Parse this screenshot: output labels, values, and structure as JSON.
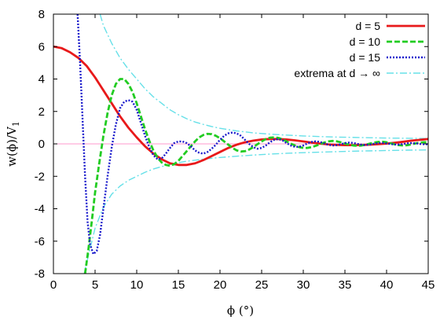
{
  "chart_data": {
    "type": "line",
    "xlabel": "ϕ (°)",
    "ylabel": "w(ϕ)/V",
    "ylabel_sub": "1",
    "xlim": [
      0,
      45
    ],
    "ylim": [
      -8,
      8
    ],
    "xticks": [
      "0",
      "5",
      "10",
      "15",
      "20",
      "25",
      "30",
      "35",
      "40",
      "45"
    ],
    "yticks": [
      "8",
      "6",
      "4",
      "2",
      "0",
      "-2",
      "-4",
      "-6",
      "-8"
    ],
    "grid": false,
    "legend_position": "top-right",
    "zero_line_color": "#ff99cc",
    "series": [
      {
        "name": "d = 5",
        "color": "#e8191a",
        "style": "solid",
        "points": [
          [
            0,
            6.0
          ],
          [
            1,
            5.9
          ],
          [
            2,
            5.65
          ],
          [
            3,
            5.3
          ],
          [
            4,
            4.8
          ],
          [
            5,
            4.1
          ],
          [
            6,
            3.3
          ],
          [
            7,
            2.5
          ],
          [
            8,
            1.7
          ],
          [
            9,
            1.0
          ],
          [
            10,
            0.4
          ],
          [
            11,
            -0.15
          ],
          [
            12,
            -0.6
          ],
          [
            13,
            -0.95
          ],
          [
            14,
            -1.2
          ],
          [
            15,
            -1.3
          ],
          [
            16,
            -1.3
          ],
          [
            17,
            -1.2
          ],
          [
            18,
            -1.0
          ],
          [
            19,
            -0.75
          ],
          [
            20,
            -0.5
          ],
          [
            21,
            -0.25
          ],
          [
            22,
            -0.05
          ],
          [
            23,
            0.1
          ],
          [
            24,
            0.2
          ],
          [
            25,
            0.27
          ],
          [
            26,
            0.3
          ],
          [
            27,
            0.3
          ],
          [
            28,
            0.27
          ],
          [
            29,
            0.22
          ],
          [
            30,
            0.15
          ],
          [
            31,
            0.08
          ],
          [
            32,
            0.02
          ],
          [
            33,
            -0.03
          ],
          [
            34,
            -0.06
          ],
          [
            35,
            -0.08
          ],
          [
            36,
            -0.08
          ],
          [
            37,
            -0.07
          ],
          [
            38,
            -0.05
          ],
          [
            39,
            -0.02
          ],
          [
            40,
            0.02
          ],
          [
            41,
            0.07
          ],
          [
            42,
            0.13
          ],
          [
            43,
            0.2
          ],
          [
            44,
            0.25
          ],
          [
            45,
            0.3
          ]
        ]
      },
      {
        "name": "d = 10",
        "color": "#22cc22",
        "style": "dashed",
        "points": [
          [
            3.8,
            -8.0
          ],
          [
            4.2,
            -6.5
          ],
          [
            4.6,
            -4.8
          ],
          [
            5.0,
            -3.0
          ],
          [
            5.5,
            -1.2
          ],
          [
            6.0,
            0.5
          ],
          [
            6.5,
            1.9
          ],
          [
            7.0,
            3.0
          ],
          [
            7.5,
            3.7
          ],
          [
            8.0,
            4.0
          ],
          [
            8.5,
            4.0
          ],
          [
            9.0,
            3.7
          ],
          [
            9.5,
            3.2
          ],
          [
            10.0,
            2.5
          ],
          [
            10.5,
            1.7
          ],
          [
            11.0,
            0.9
          ],
          [
            11.5,
            0.2
          ],
          [
            12.0,
            -0.4
          ],
          [
            12.5,
            -0.85
          ],
          [
            13.0,
            -1.15
          ],
          [
            13.5,
            -1.3
          ],
          [
            14.0,
            -1.35
          ],
          [
            14.5,
            -1.25
          ],
          [
            15.0,
            -1.05
          ],
          [
            15.5,
            -0.75
          ],
          [
            16.0,
            -0.45
          ],
          [
            16.5,
            -0.15
          ],
          [
            17.0,
            0.15
          ],
          [
            17.5,
            0.4
          ],
          [
            18.0,
            0.55
          ],
          [
            18.5,
            0.62
          ],
          [
            19.0,
            0.6
          ],
          [
            19.5,
            0.5
          ],
          [
            20.0,
            0.35
          ],
          [
            20.5,
            0.15
          ],
          [
            21.0,
            -0.05
          ],
          [
            21.5,
            -0.25
          ],
          [
            22.0,
            -0.4
          ],
          [
            22.5,
            -0.47
          ],
          [
            23.0,
            -0.45
          ],
          [
            23.5,
            -0.35
          ],
          [
            24.0,
            -0.2
          ],
          [
            24.5,
            -0.02
          ],
          [
            25.0,
            0.15
          ],
          [
            25.5,
            0.3
          ],
          [
            26.0,
            0.38
          ],
          [
            26.5,
            0.4
          ],
          [
            27.0,
            0.37
          ],
          [
            27.5,
            0.28
          ],
          [
            28.0,
            0.15
          ],
          [
            28.5,
            0.02
          ],
          [
            29.0,
            -0.1
          ],
          [
            29.5,
            -0.2
          ],
          [
            30.0,
            -0.25
          ],
          [
            30.5,
            -0.25
          ],
          [
            31.0,
            -0.2
          ],
          [
            31.5,
            -0.12
          ],
          [
            32.0,
            -0.02
          ],
          [
            32.5,
            0.08
          ],
          [
            33.0,
            0.15
          ],
          [
            33.5,
            0.18
          ],
          [
            34.0,
            0.16
          ],
          [
            34.5,
            0.1
          ],
          [
            35.0,
            0.02
          ],
          [
            35.5,
            -0.05
          ],
          [
            36.0,
            -0.1
          ],
          [
            36.5,
            -0.12
          ],
          [
            37.0,
            -0.1
          ],
          [
            37.5,
            -0.05
          ],
          [
            38.0,
            0.02
          ],
          [
            38.5,
            0.08
          ],
          [
            39.0,
            0.12
          ],
          [
            39.5,
            0.13
          ],
          [
            40.0,
            0.1
          ],
          [
            40.5,
            0.04
          ],
          [
            41.0,
            -0.03
          ],
          [
            41.5,
            -0.08
          ],
          [
            42.0,
            -0.1
          ],
          [
            42.5,
            -0.08
          ],
          [
            43.0,
            -0.03
          ],
          [
            43.5,
            0.03
          ],
          [
            44.0,
            0.08
          ],
          [
            44.5,
            0.1
          ],
          [
            45.0,
            0.1
          ]
        ]
      },
      {
        "name": "d = 15",
        "color": "#1a1acc",
        "style": "dotted",
        "points": [
          [
            2.9,
            8.0
          ],
          [
            3.2,
            5.0
          ],
          [
            3.5,
            1.5
          ],
          [
            3.8,
            -2.0
          ],
          [
            4.1,
            -4.8
          ],
          [
            4.4,
            -6.2
          ],
          [
            4.8,
            -6.8
          ],
          [
            5.2,
            -6.6
          ],
          [
            5.6,
            -5.6
          ],
          [
            6.0,
            -4.0
          ],
          [
            6.5,
            -2.0
          ],
          [
            7.0,
            -0.2
          ],
          [
            7.5,
            1.2
          ],
          [
            8.0,
            2.2
          ],
          [
            8.5,
            2.6
          ],
          [
            9.0,
            2.7
          ],
          [
            9.5,
            2.6
          ],
          [
            10.0,
            2.1
          ],
          [
            10.5,
            1.3
          ],
          [
            11.0,
            0.5
          ],
          [
            11.5,
            -0.2
          ],
          [
            12.0,
            -0.7
          ],
          [
            12.5,
            -0.95
          ],
          [
            13.0,
            -0.9
          ],
          [
            13.5,
            -0.6
          ],
          [
            14.0,
            -0.25
          ],
          [
            14.5,
            0.05
          ],
          [
            15.0,
            0.15
          ],
          [
            15.5,
            0.15
          ],
          [
            16.0,
            0.05
          ],
          [
            16.5,
            -0.15
          ],
          [
            17.0,
            -0.4
          ],
          [
            17.5,
            -0.55
          ],
          [
            18.0,
            -0.6
          ],
          [
            18.5,
            -0.5
          ],
          [
            19.0,
            -0.3
          ],
          [
            19.5,
            -0.05
          ],
          [
            20.0,
            0.25
          ],
          [
            20.5,
            0.5
          ],
          [
            21.0,
            0.65
          ],
          [
            21.5,
            0.7
          ],
          [
            22.0,
            0.65
          ],
          [
            22.5,
            0.5
          ],
          [
            23.0,
            0.25
          ],
          [
            23.5,
            0.0
          ],
          [
            24.0,
            -0.2
          ],
          [
            24.5,
            -0.3
          ],
          [
            25.0,
            -0.25
          ],
          [
            25.5,
            -0.1
          ],
          [
            26.0,
            0.1
          ],
          [
            26.5,
            0.25
          ],
          [
            27.0,
            0.3
          ],
          [
            27.5,
            0.22
          ],
          [
            28.0,
            0.05
          ],
          [
            28.5,
            -0.1
          ],
          [
            29.0,
            -0.18
          ],
          [
            29.5,
            -0.18
          ],
          [
            30.0,
            -0.1
          ],
          [
            30.5,
            0.03
          ],
          [
            31.0,
            0.12
          ],
          [
            31.5,
            0.16
          ],
          [
            32.0,
            0.12
          ],
          [
            32.5,
            0.03
          ],
          [
            33.0,
            -0.05
          ],
          [
            33.5,
            -0.1
          ],
          [
            34.0,
            -0.08
          ],
          [
            34.5,
            -0.02
          ],
          [
            35.0,
            0.05
          ],
          [
            35.5,
            0.08
          ],
          [
            36.0,
            0.06
          ],
          [
            36.5,
            0.0
          ],
          [
            37.0,
            -0.05
          ],
          [
            37.5,
            -0.07
          ],
          [
            38.0,
            -0.04
          ],
          [
            38.5,
            0.01
          ],
          [
            39.0,
            0.05
          ],
          [
            39.5,
            0.06
          ],
          [
            40.0,
            0.03
          ],
          [
            40.5,
            -0.01
          ],
          [
            41.0,
            -0.04
          ],
          [
            41.5,
            -0.04
          ],
          [
            42.0,
            -0.01
          ],
          [
            42.5,
            0.03
          ],
          [
            43.0,
            0.05
          ],
          [
            43.5,
            0.04
          ],
          [
            44.0,
            0.0
          ],
          [
            44.5,
            -0.02
          ],
          [
            45.0,
            -0.02
          ]
        ]
      },
      {
        "name": "extrema at d → ∞",
        "color": "#66e0e8",
        "style": "dashdot",
        "points_upper": [
          [
            5.6,
            8.0
          ],
          [
            6,
            7.3
          ],
          [
            7,
            6.2
          ],
          [
            8,
            5.3
          ],
          [
            9,
            4.6
          ],
          [
            10,
            4.0
          ],
          [
            11,
            3.4
          ],
          [
            12,
            2.9
          ],
          [
            13,
            2.5
          ],
          [
            14,
            2.1
          ],
          [
            15,
            1.8
          ],
          [
            16,
            1.55
          ],
          [
            17,
            1.35
          ],
          [
            18,
            1.2
          ],
          [
            19,
            1.07
          ],
          [
            20,
            0.96
          ],
          [
            22,
            0.8
          ],
          [
            24,
            0.68
          ],
          [
            26,
            0.6
          ],
          [
            28,
            0.54
          ],
          [
            30,
            0.49
          ],
          [
            32,
            0.45
          ],
          [
            34,
            0.42
          ],
          [
            36,
            0.4
          ],
          [
            38,
            0.38
          ],
          [
            40,
            0.36
          ],
          [
            42,
            0.35
          ],
          [
            45,
            0.33
          ]
        ],
        "points_lower": [
          [
            3.7,
            -8.0
          ],
          [
            4,
            -7.3
          ],
          [
            5,
            -5.2
          ],
          [
            6,
            -3.9
          ],
          [
            7,
            -3.1
          ],
          [
            8,
            -2.6
          ],
          [
            9,
            -2.25
          ],
          [
            10,
            -2.0
          ],
          [
            11,
            -1.75
          ],
          [
            12,
            -1.55
          ],
          [
            13,
            -1.4
          ],
          [
            14,
            -1.27
          ],
          [
            15,
            -1.16
          ],
          [
            16,
            -1.07
          ],
          [
            18,
            -0.94
          ],
          [
            20,
            -0.84
          ],
          [
            22,
            -0.76
          ],
          [
            24,
            -0.69
          ],
          [
            26,
            -0.63
          ],
          [
            28,
            -0.58
          ],
          [
            30,
            -0.54
          ],
          [
            32,
            -0.51
          ],
          [
            34,
            -0.48
          ],
          [
            36,
            -0.45
          ],
          [
            38,
            -0.43
          ],
          [
            40,
            -0.41
          ],
          [
            42,
            -0.39
          ],
          [
            45,
            -0.37
          ]
        ]
      }
    ]
  }
}
